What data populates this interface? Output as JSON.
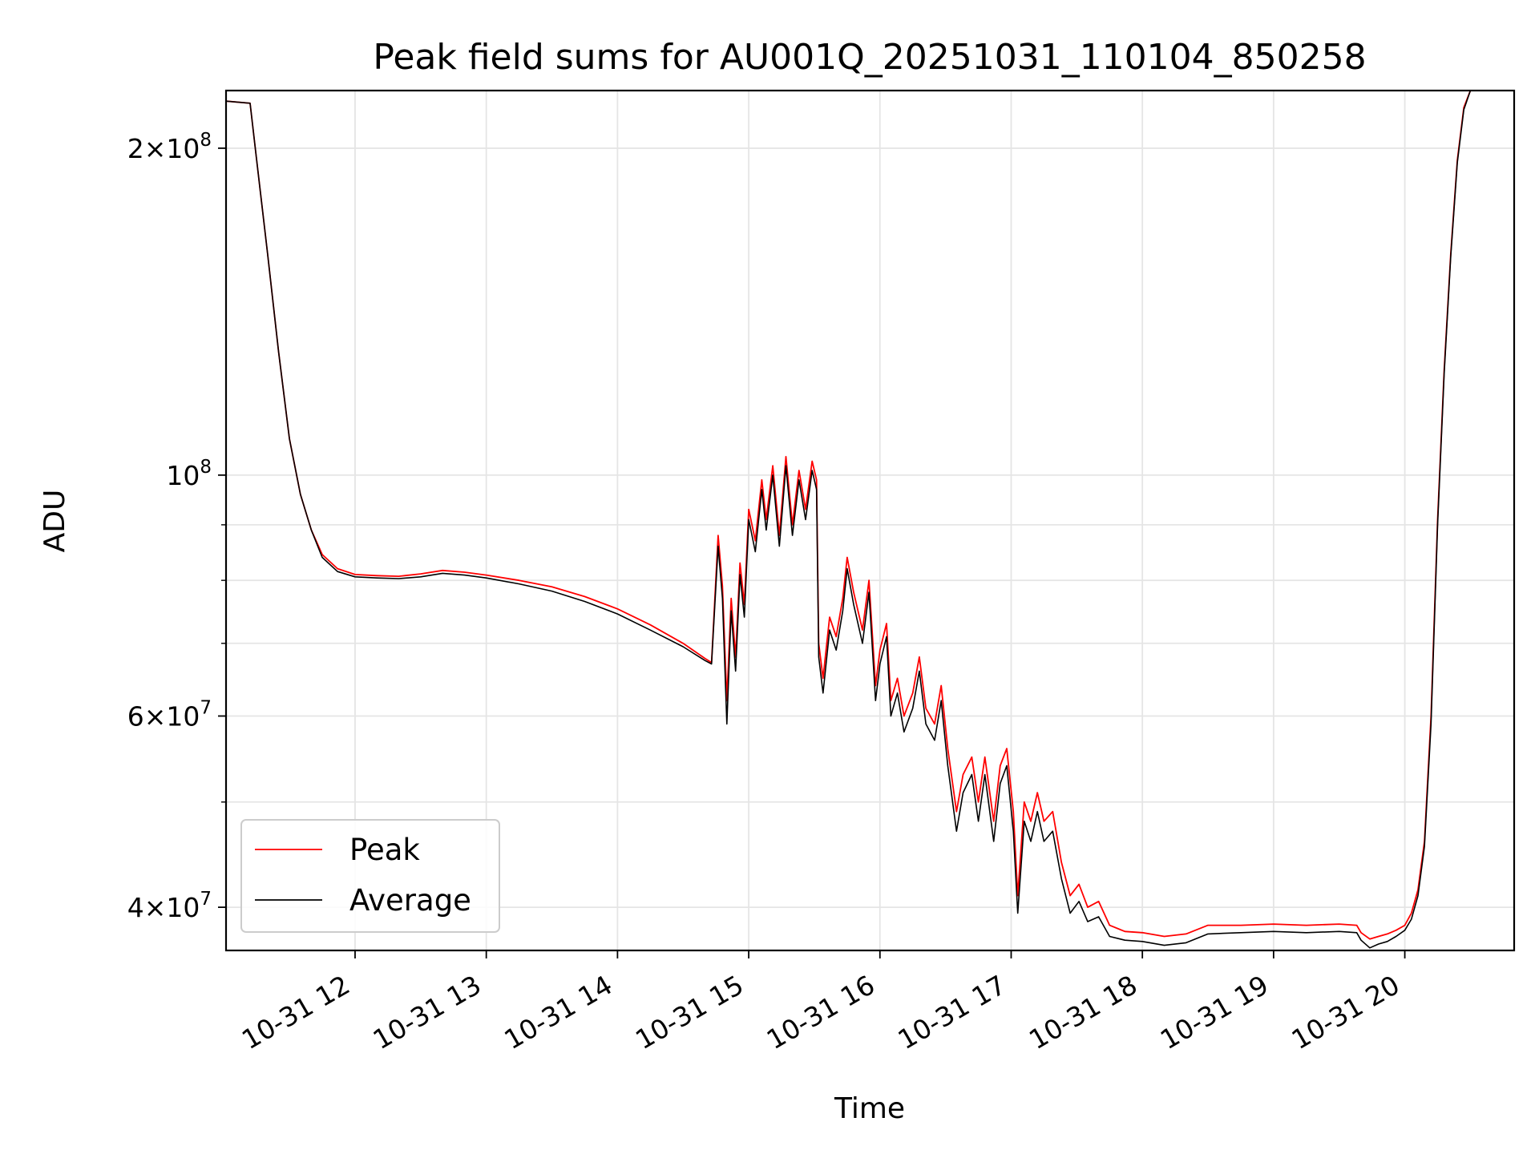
{
  "chart_data": {
    "type": "line",
    "title": "Peak field sums for AU001Q_20251031_110104_850258",
    "xlabel": "Time",
    "ylabel": "ADU",
    "yscale": "log",
    "xlim": [
      "2025-10-31T11:01",
      "2025-10-31T20:50"
    ],
    "ylim": [
      36500000,
      226000000
    ],
    "grid": true,
    "legend": "lower-left",
    "x_ticks": [
      {
        "value": "2025-10-31T12:00",
        "label": "10-31 12"
      },
      {
        "value": "2025-10-31T13:00",
        "label": "10-31 13"
      },
      {
        "value": "2025-10-31T14:00",
        "label": "10-31 14"
      },
      {
        "value": "2025-10-31T15:00",
        "label": "10-31 15"
      },
      {
        "value": "2025-10-31T16:00",
        "label": "10-31 16"
      },
      {
        "value": "2025-10-31T17:00",
        "label": "10-31 17"
      },
      {
        "value": "2025-10-31T18:00",
        "label": "10-31 18"
      },
      {
        "value": "2025-10-31T19:00",
        "label": "10-31 19"
      },
      {
        "value": "2025-10-31T20:00",
        "label": "10-31 20"
      }
    ],
    "y_ticks": [
      {
        "value": 40000000,
        "mant": "4",
        "exp": "7"
      },
      {
        "value": 60000000,
        "mant": "6",
        "exp": "7"
      },
      {
        "value": 100000000,
        "mant": "",
        "exp": "8"
      },
      {
        "value": 200000000,
        "mant": "2",
        "exp": "8"
      }
    ],
    "y_minor": [
      50000000,
      70000000,
      80000000,
      90000000
    ],
    "series": [
      {
        "name": "Peak",
        "color": "#ff0000",
        "points": [
          [
            "2025-10-31T11:01",
            221000000
          ],
          [
            "2025-10-31T11:12",
            220000000
          ],
          [
            "2025-10-31T11:15",
            195000000
          ],
          [
            "2025-10-31T11:20",
            160000000
          ],
          [
            "2025-10-31T11:25",
            130000000
          ],
          [
            "2025-10-31T11:30",
            108000000
          ],
          [
            "2025-10-31T11:35",
            96000000
          ],
          [
            "2025-10-31T11:40",
            89000000
          ],
          [
            "2025-10-31T11:45",
            84500000
          ],
          [
            "2025-10-31T11:52",
            82000000
          ],
          [
            "2025-10-31T12:00",
            81000000
          ],
          [
            "2025-10-31T12:10",
            80800000
          ],
          [
            "2025-10-31T12:20",
            80700000
          ],
          [
            "2025-10-31T12:30",
            81100000
          ],
          [
            "2025-10-31T12:40",
            81700000
          ],
          [
            "2025-10-31T12:50",
            81400000
          ],
          [
            "2025-10-31T13:00",
            80900000
          ],
          [
            "2025-10-31T13:15",
            80000000
          ],
          [
            "2025-10-31T13:30",
            78900000
          ],
          [
            "2025-10-31T13:45",
            77300000
          ],
          [
            "2025-10-31T14:00",
            75300000
          ],
          [
            "2025-10-31T14:15",
            72800000
          ],
          [
            "2025-10-31T14:30",
            70000000
          ],
          [
            "2025-10-31T14:40",
            67800000
          ],
          [
            "2025-10-31T14:43",
            67200000
          ],
          [
            "2025-10-31T14:46",
            88000000
          ],
          [
            "2025-10-31T14:48",
            79000000
          ],
          [
            "2025-10-31T14:50",
            62000000
          ],
          [
            "2025-10-31T14:52",
            77000000
          ],
          [
            "2025-10-31T14:54",
            68000000
          ],
          [
            "2025-10-31T14:56",
            83000000
          ],
          [
            "2025-10-31T14:58",
            76000000
          ],
          [
            "2025-10-31T15:00",
            93000000
          ],
          [
            "2025-10-31T15:03",
            87000000
          ],
          [
            "2025-10-31T15:06",
            99000000
          ],
          [
            "2025-10-31T15:08",
            91000000
          ],
          [
            "2025-10-31T15:11",
            102000000
          ],
          [
            "2025-10-31T15:14",
            88000000
          ],
          [
            "2025-10-31T15:17",
            104000000
          ],
          [
            "2025-10-31T15:20",
            90000000
          ],
          [
            "2025-10-31T15:23",
            101000000
          ],
          [
            "2025-10-31T15:26",
            93000000
          ],
          [
            "2025-10-31T15:29",
            103000000
          ],
          [
            "2025-10-31T15:31",
            99000000
          ],
          [
            "2025-10-31T15:32",
            70000000
          ],
          [
            "2025-10-31T15:34",
            65000000
          ],
          [
            "2025-10-31T15:37",
            74000000
          ],
          [
            "2025-10-31T15:40",
            71000000
          ],
          [
            "2025-10-31T15:43",
            77000000
          ],
          [
            "2025-10-31T15:45",
            84000000
          ],
          [
            "2025-10-31T15:48",
            78000000
          ],
          [
            "2025-10-31T15:52",
            72000000
          ],
          [
            "2025-10-31T15:55",
            80000000
          ],
          [
            "2025-10-31T15:58",
            64000000
          ],
          [
            "2025-10-31T16:00",
            69000000
          ],
          [
            "2025-10-31T16:03",
            73000000
          ],
          [
            "2025-10-31T16:05",
            62000000
          ],
          [
            "2025-10-31T16:08",
            65000000
          ],
          [
            "2025-10-31T16:11",
            60000000
          ],
          [
            "2025-10-31T16:15",
            63000000
          ],
          [
            "2025-10-31T16:18",
            68000000
          ],
          [
            "2025-10-31T16:21",
            61000000
          ],
          [
            "2025-10-31T16:25",
            59000000
          ],
          [
            "2025-10-31T16:28",
            64000000
          ],
          [
            "2025-10-31T16:31",
            56000000
          ],
          [
            "2025-10-31T16:35",
            49000000
          ],
          [
            "2025-10-31T16:38",
            53000000
          ],
          [
            "2025-10-31T16:42",
            55000000
          ],
          [
            "2025-10-31T16:45",
            50000000
          ],
          [
            "2025-10-31T16:48",
            55000000
          ],
          [
            "2025-10-31T16:52",
            48000000
          ],
          [
            "2025-10-31T16:55",
            54000000
          ],
          [
            "2025-10-31T16:58",
            56000000
          ],
          [
            "2025-10-31T17:01",
            49000000
          ],
          [
            "2025-10-31T17:03",
            41000000
          ],
          [
            "2025-10-31T17:06",
            50000000
          ],
          [
            "2025-10-31T17:09",
            48000000
          ],
          [
            "2025-10-31T17:12",
            51000000
          ],
          [
            "2025-10-31T17:15",
            48000000
          ],
          [
            "2025-10-31T17:19",
            49000000
          ],
          [
            "2025-10-31T17:23",
            44000000
          ],
          [
            "2025-10-31T17:27",
            41000000
          ],
          [
            "2025-10-31T17:31",
            42000000
          ],
          [
            "2025-10-31T17:35",
            40000000
          ],
          [
            "2025-10-31T17:40",
            40500000
          ],
          [
            "2025-10-31T17:45",
            38500000
          ],
          [
            "2025-10-31T17:52",
            38000000
          ],
          [
            "2025-10-31T18:00",
            37900000
          ],
          [
            "2025-10-31T18:10",
            37600000
          ],
          [
            "2025-10-31T18:20",
            37800000
          ],
          [
            "2025-10-31T18:30",
            38500000
          ],
          [
            "2025-10-31T18:45",
            38500000
          ],
          [
            "2025-10-31T19:00",
            38600000
          ],
          [
            "2025-10-31T19:15",
            38500000
          ],
          [
            "2025-10-31T19:30",
            38600000
          ],
          [
            "2025-10-31T19:38",
            38500000
          ],
          [
            "2025-10-31T19:40",
            37900000
          ],
          [
            "2025-10-31T19:44",
            37400000
          ],
          [
            "2025-10-31T19:48",
            37600000
          ],
          [
            "2025-10-31T19:52",
            37800000
          ],
          [
            "2025-10-31T19:56",
            38100000
          ],
          [
            "2025-10-31T20:00",
            38500000
          ],
          [
            "2025-10-31T20:03",
            39500000
          ],
          [
            "2025-10-31T20:06",
            41500000
          ],
          [
            "2025-10-31T20:09",
            46000000
          ],
          [
            "2025-10-31T20:12",
            60000000
          ],
          [
            "2025-10-31T20:15",
            91000000
          ],
          [
            "2025-10-31T20:18",
            125000000
          ],
          [
            "2025-10-31T20:21",
            160000000
          ],
          [
            "2025-10-31T20:24",
            195000000
          ],
          [
            "2025-10-31T20:27",
            218000000
          ],
          [
            "2025-10-31T20:30",
            226000000
          ]
        ]
      },
      {
        "name": "Average",
        "color": "#000000",
        "points": [
          [
            "2025-10-31T11:01",
            221000000
          ],
          [
            "2025-10-31T11:12",
            220000000
          ],
          [
            "2025-10-31T11:15",
            195000000
          ],
          [
            "2025-10-31T11:20",
            160000000
          ],
          [
            "2025-10-31T11:25",
            130000000
          ],
          [
            "2025-10-31T11:30",
            108000000
          ],
          [
            "2025-10-31T11:35",
            96000000
          ],
          [
            "2025-10-31T11:40",
            89000000
          ],
          [
            "2025-10-31T11:45",
            84000000
          ],
          [
            "2025-10-31T11:52",
            81500000
          ],
          [
            "2025-10-31T12:00",
            80600000
          ],
          [
            "2025-10-31T12:10",
            80400000
          ],
          [
            "2025-10-31T12:20",
            80300000
          ],
          [
            "2025-10-31T12:30",
            80600000
          ],
          [
            "2025-10-31T12:40",
            81200000
          ],
          [
            "2025-10-31T12:50",
            80900000
          ],
          [
            "2025-10-31T13:00",
            80400000
          ],
          [
            "2025-10-31T13:15",
            79400000
          ],
          [
            "2025-10-31T13:30",
            78200000
          ],
          [
            "2025-10-31T13:45",
            76500000
          ],
          [
            "2025-10-31T14:00",
            74500000
          ],
          [
            "2025-10-31T14:15",
            72000000
          ],
          [
            "2025-10-31T14:30",
            69500000
          ],
          [
            "2025-10-31T14:40",
            67500000
          ],
          [
            "2025-10-31T14:43",
            67000000
          ],
          [
            "2025-10-31T14:46",
            86000000
          ],
          [
            "2025-10-31T14:48",
            77000000
          ],
          [
            "2025-10-31T14:50",
            59000000
          ],
          [
            "2025-10-31T14:52",
            75000000
          ],
          [
            "2025-10-31T14:54",
            66000000
          ],
          [
            "2025-10-31T14:56",
            81000000
          ],
          [
            "2025-10-31T14:58",
            74000000
          ],
          [
            "2025-10-31T15:00",
            91000000
          ],
          [
            "2025-10-31T15:03",
            85000000
          ],
          [
            "2025-10-31T15:06",
            97000000
          ],
          [
            "2025-10-31T15:08",
            89000000
          ],
          [
            "2025-10-31T15:11",
            100000000
          ],
          [
            "2025-10-31T15:14",
            86000000
          ],
          [
            "2025-10-31T15:17",
            102000000
          ],
          [
            "2025-10-31T15:20",
            88000000
          ],
          [
            "2025-10-31T15:23",
            99000000
          ],
          [
            "2025-10-31T15:26",
            91000000
          ],
          [
            "2025-10-31T15:29",
            101000000
          ],
          [
            "2025-10-31T15:31",
            97000000
          ],
          [
            "2025-10-31T15:32",
            68000000
          ],
          [
            "2025-10-31T15:34",
            63000000
          ],
          [
            "2025-10-31T15:37",
            72000000
          ],
          [
            "2025-10-31T15:40",
            69000000
          ],
          [
            "2025-10-31T15:43",
            75000000
          ],
          [
            "2025-10-31T15:45",
            82000000
          ],
          [
            "2025-10-31T15:48",
            76000000
          ],
          [
            "2025-10-31T15:52",
            70000000
          ],
          [
            "2025-10-31T15:55",
            78000000
          ],
          [
            "2025-10-31T15:58",
            62000000
          ],
          [
            "2025-10-31T16:00",
            67000000
          ],
          [
            "2025-10-31T16:03",
            71000000
          ],
          [
            "2025-10-31T16:05",
            60000000
          ],
          [
            "2025-10-31T16:08",
            63000000
          ],
          [
            "2025-10-31T16:11",
            58000000
          ],
          [
            "2025-10-31T16:15",
            61000000
          ],
          [
            "2025-10-31T16:18",
            66000000
          ],
          [
            "2025-10-31T16:21",
            59000000
          ],
          [
            "2025-10-31T16:25",
            57000000
          ],
          [
            "2025-10-31T16:28",
            62000000
          ],
          [
            "2025-10-31T16:31",
            54000000
          ],
          [
            "2025-10-31T16:35",
            47000000
          ],
          [
            "2025-10-31T16:38",
            51000000
          ],
          [
            "2025-10-31T16:42",
            53000000
          ],
          [
            "2025-10-31T16:45",
            48000000
          ],
          [
            "2025-10-31T16:48",
            53000000
          ],
          [
            "2025-10-31T16:52",
            46000000
          ],
          [
            "2025-10-31T16:55",
            52000000
          ],
          [
            "2025-10-31T16:58",
            54000000
          ],
          [
            "2025-10-31T17:01",
            47000000
          ],
          [
            "2025-10-31T17:03",
            39500000
          ],
          [
            "2025-10-31T17:06",
            48000000
          ],
          [
            "2025-10-31T17:09",
            46000000
          ],
          [
            "2025-10-31T17:12",
            49000000
          ],
          [
            "2025-10-31T17:15",
            46000000
          ],
          [
            "2025-10-31T17:19",
            47000000
          ],
          [
            "2025-10-31T17:23",
            42500000
          ],
          [
            "2025-10-31T17:27",
            39500000
          ],
          [
            "2025-10-31T17:31",
            40500000
          ],
          [
            "2025-10-31T17:35",
            38800000
          ],
          [
            "2025-10-31T17:40",
            39200000
          ],
          [
            "2025-10-31T17:45",
            37600000
          ],
          [
            "2025-10-31T17:52",
            37300000
          ],
          [
            "2025-10-31T18:00",
            37200000
          ],
          [
            "2025-10-31T18:10",
            36900000
          ],
          [
            "2025-10-31T18:20",
            37100000
          ],
          [
            "2025-10-31T18:30",
            37800000
          ],
          [
            "2025-10-31T18:45",
            37900000
          ],
          [
            "2025-10-31T19:00",
            38000000
          ],
          [
            "2025-10-31T19:15",
            37900000
          ],
          [
            "2025-10-31T19:30",
            38000000
          ],
          [
            "2025-10-31T19:38",
            37900000
          ],
          [
            "2025-10-31T19:40",
            37300000
          ],
          [
            "2025-10-31T19:44",
            36700000
          ],
          [
            "2025-10-31T19:48",
            37000000
          ],
          [
            "2025-10-31T19:52",
            37200000
          ],
          [
            "2025-10-31T19:56",
            37600000
          ],
          [
            "2025-10-31T20:00",
            38100000
          ],
          [
            "2025-10-31T20:03",
            39000000
          ],
          [
            "2025-10-31T20:06",
            41000000
          ],
          [
            "2025-10-31T20:09",
            45500000
          ],
          [
            "2025-10-31T20:12",
            59000000
          ],
          [
            "2025-10-31T20:15",
            90000000
          ],
          [
            "2025-10-31T20:18",
            124000000
          ],
          [
            "2025-10-31T20:21",
            159000000
          ],
          [
            "2025-10-31T20:24",
            194000000
          ],
          [
            "2025-10-31T20:27",
            217000000
          ],
          [
            "2025-10-31T20:30",
            226000000
          ]
        ]
      }
    ]
  }
}
